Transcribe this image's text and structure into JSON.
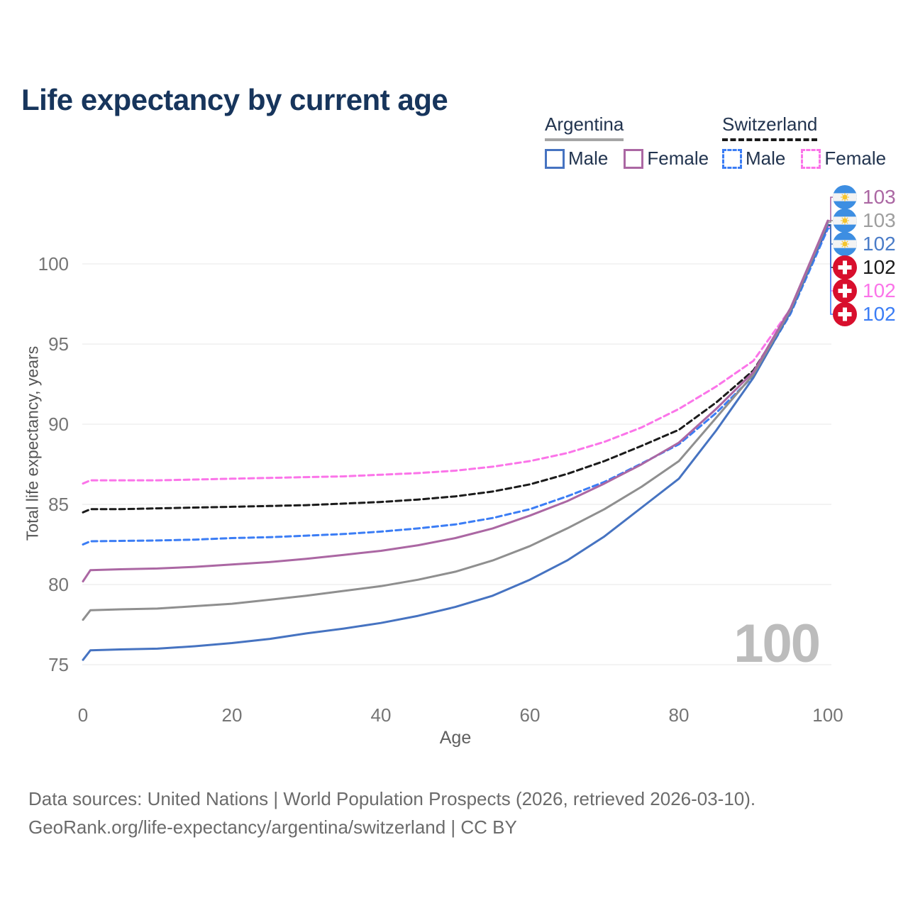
{
  "title": "Life expectancy by current age",
  "watermark": "100",
  "legend": {
    "groups": [
      {
        "name": "Argentina",
        "line_style": "solid",
        "underline_color": "#a5a5a5",
        "items": [
          {
            "label": "Male",
            "color": "#4673c1",
            "dashed": false
          },
          {
            "label": "Female",
            "color": "#ab67a3",
            "dashed": false
          }
        ]
      },
      {
        "name": "Switzerland",
        "line_style": "dashed",
        "underline_color": "#1b1b1b",
        "items": [
          {
            "label": "Male",
            "color": "#3b7df5",
            "dashed": true
          },
          {
            "label": "Female",
            "color": "#fb74e9",
            "dashed": true
          }
        ]
      }
    ]
  },
  "end_labels": [
    {
      "flag": "argentina",
      "series": "Argentina Female",
      "value": "103",
      "color": "#ab67a3"
    },
    {
      "flag": "argentina",
      "series": "Argentina Both sexes",
      "value": "103",
      "color": "#9e9e9e"
    },
    {
      "flag": "argentina",
      "series": "Argentina Male",
      "value": "102",
      "color": "#4a7cc8"
    },
    {
      "flag": "switzerland",
      "series": "Switzerland Both sexes",
      "value": "102",
      "color": "#1b1b1b"
    },
    {
      "flag": "switzerland",
      "series": "Switzerland Female",
      "value": "102",
      "color": "#fb74e9"
    },
    {
      "flag": "switzerland",
      "series": "Switzerland Male",
      "value": "102",
      "color": "#3b7df5"
    }
  ],
  "footer": {
    "line1": "Data sources: United Nations | World Population Prospects (2026, retrieved 2026-03-10).",
    "line2": "GeoRank.org/life-expectancy/argentina/switzerland | CC BY"
  },
  "chart_data": {
    "type": "line",
    "title": "Life expectancy by current age",
    "xlabel": "Age",
    "ylabel": "Total life expectancy, years",
    "xlim": [
      0,
      100
    ],
    "ylim": [
      74,
      104
    ],
    "x_ticks": [
      0,
      20,
      40,
      60,
      80,
      100
    ],
    "y_ticks": [
      75,
      80,
      85,
      90,
      95,
      100
    ],
    "grid": "horizontal",
    "x": [
      0,
      1,
      5,
      10,
      15,
      20,
      25,
      30,
      35,
      40,
      45,
      50,
      55,
      60,
      65,
      70,
      75,
      80,
      85,
      90,
      95,
      100
    ],
    "series": [
      {
        "name": "Switzerland Female",
        "country": "Switzerland",
        "sex": "Female",
        "color": "#fb74e9",
        "dashed": true,
        "end_label_index": 4,
        "values": [
          86.3,
          86.5,
          86.5,
          86.5,
          86.55,
          86.6,
          86.65,
          86.7,
          86.75,
          86.85,
          86.95,
          87.1,
          87.35,
          87.7,
          88.2,
          88.9,
          89.8,
          90.95,
          92.35,
          93.95,
          97.2,
          102.3
        ]
      },
      {
        "name": "Switzerland Both sexes",
        "country": "Switzerland",
        "sex": "Both",
        "color": "#1b1b1b",
        "dashed": true,
        "end_label_index": 3,
        "values": [
          84.5,
          84.7,
          84.7,
          84.75,
          84.8,
          84.85,
          84.9,
          84.95,
          85.05,
          85.15,
          85.3,
          85.5,
          85.8,
          86.25,
          86.9,
          87.7,
          88.65,
          89.65,
          91.35,
          93.35,
          97.0,
          102.4
        ]
      },
      {
        "name": "Switzerland Male",
        "country": "Switzerland",
        "sex": "Male",
        "color": "#3b7df5",
        "dashed": true,
        "end_label_index": 5,
        "values": [
          82.5,
          82.7,
          82.72,
          82.75,
          82.8,
          82.9,
          82.95,
          83.05,
          83.15,
          83.3,
          83.5,
          83.75,
          84.15,
          84.7,
          85.5,
          86.4,
          87.55,
          88.75,
          90.7,
          93.0,
          96.9,
          102.2
        ]
      },
      {
        "name": "Argentina Male",
        "country": "Argentina",
        "sex": "Male",
        "color": "#4673c1",
        "dashed": false,
        "end_label_index": 2,
        "values": [
          75.3,
          75.9,
          75.95,
          76.0,
          76.15,
          76.35,
          76.6,
          76.95,
          77.25,
          77.6,
          78.05,
          78.6,
          79.3,
          80.3,
          81.5,
          83.0,
          84.8,
          86.6,
          89.6,
          92.9,
          97.0,
          102.45
        ]
      },
      {
        "name": "Argentina Both sexes",
        "country": "Argentina",
        "sex": "Both",
        "color": "#8f8f8f",
        "dashed": false,
        "end_label_index": 1,
        "values": [
          77.8,
          78.4,
          78.45,
          78.5,
          78.65,
          78.8,
          79.05,
          79.3,
          79.6,
          79.9,
          80.3,
          80.8,
          81.5,
          82.4,
          83.5,
          84.7,
          86.1,
          87.7,
          90.4,
          93.1,
          97.15,
          102.6
        ]
      },
      {
        "name": "Argentina Female",
        "country": "Argentina",
        "sex": "Female",
        "color": "#ab67a3",
        "dashed": false,
        "end_label_index": 0,
        "values": [
          80.2,
          80.9,
          80.95,
          81.0,
          81.1,
          81.25,
          81.4,
          81.6,
          81.85,
          82.1,
          82.45,
          82.9,
          83.5,
          84.3,
          85.2,
          86.3,
          87.5,
          88.85,
          90.95,
          93.25,
          97.25,
          102.7
        ]
      }
    ]
  }
}
